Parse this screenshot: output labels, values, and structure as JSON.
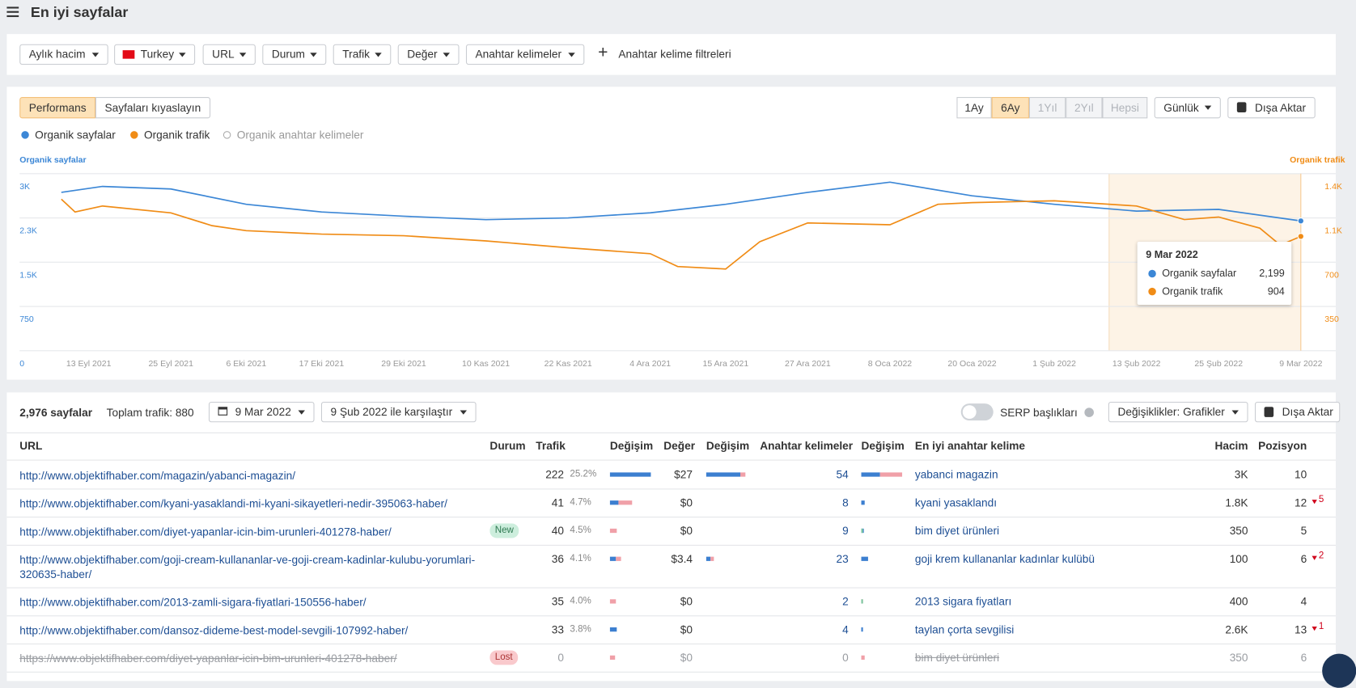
{
  "header": {
    "title": "En iyi sayfalar"
  },
  "filters": [
    "Aylık hacim",
    "Turkey",
    "URL",
    "Durum",
    "Trafik",
    "Değer",
    "Anahtar kelimeler"
  ],
  "add_filter": "Anahtar kelime filtreleri",
  "chart_tabs": [
    "Performans",
    "Sayfaları kıyaslayın"
  ],
  "ranges": [
    "1Ay",
    "6Ay",
    "1Yıl",
    "2Yıl",
    "Hepsi"
  ],
  "interval": "Günlük",
  "chart_export": "Dışa Aktar",
  "extra_legend": "Organik anahtar kelimeler",
  "chart_data": {
    "type": "line",
    "y_title": "Organik sayfalar",
    "y2_title": "Organik trafik",
    "xlim": [
      "2021-09-09",
      "2022-03-09"
    ],
    "xticks": [
      {
        "value": "2021-09-13",
        "label": "13 Eyl 2021"
      },
      {
        "value": "2021-09-25",
        "label": "25 Eyl 2021"
      },
      {
        "value": "2021-10-06",
        "label": "6 Eki 2021"
      },
      {
        "value": "2021-10-17",
        "label": "17 Eki 2021"
      },
      {
        "value": "2021-10-29",
        "label": "29 Eki 2021"
      },
      {
        "value": "2021-11-10",
        "label": "10 Kas 2021"
      },
      {
        "value": "2021-11-22",
        "label": "22 Kas 2021"
      },
      {
        "value": "2021-12-04",
        "label": "4 Ara 2021"
      },
      {
        "value": "2021-12-15",
        "label": "15 Ara 2021"
      },
      {
        "value": "2021-12-27",
        "label": "27 Ara 2021"
      },
      {
        "value": "2022-01-08",
        "label": "8 Oca 2022"
      },
      {
        "value": "2022-01-20",
        "label": "20 Oca 2022"
      },
      {
        "value": "2022-02-01",
        "label": "1 Şub 2022"
      },
      {
        "value": "2022-02-13",
        "label": "13 Şub 2022"
      },
      {
        "value": "2022-02-25",
        "label": "25 Şub 2022"
      },
      {
        "value": "2022-03-09",
        "label": "9 Mar 2022"
      }
    ],
    "ylim": [
      0,
      3000
    ],
    "yticks": [
      0,
      750,
      {
        "value": 1500,
        "label": "1.5K"
      },
      {
        "value": 2250,
        "label": "2.3K"
      },
      {
        "value": 3000,
        "label": "3K"
      }
    ],
    "y2lim": [
      0,
      1400
    ],
    "y2ticks": [
      350,
      700,
      {
        "value": 1050,
        "label": "1.1K"
      },
      {
        "value": 1400,
        "label": "1.4K"
      }
    ],
    "grid": true,
    "highlight": [
      "2022-02-09",
      "2022-03-09"
    ],
    "series": [
      {
        "name": "Organik sayfalar",
        "color": "#3c87d6",
        "x": [
          "2021-09-09",
          "2021-09-15",
          "2021-09-25",
          "2021-10-06",
          "2021-10-17",
          "2021-10-29",
          "2021-11-10",
          "2021-11-22",
          "2021-12-04",
          "2021-12-15",
          "2021-12-27",
          "2022-01-08",
          "2022-01-20",
          "2022-02-01",
          "2022-02-13",
          "2022-02-25",
          "2022-03-09"
        ],
        "values": [
          2683,
          2784,
          2740,
          2481,
          2351,
          2279,
          2221,
          2250,
          2337,
          2481,
          2683,
          2856,
          2625,
          2481,
          2365,
          2394,
          2199
        ]
      },
      {
        "name": "Organik trafik",
        "color": "#f08c16",
        "axis": "y2",
        "x": [
          "2021-09-09",
          "2021-09-11",
          "2021-09-15",
          "2021-09-25",
          "2021-10-01",
          "2021-10-06",
          "2021-10-17",
          "2021-10-29",
          "2021-11-10",
          "2021-11-22",
          "2021-12-04",
          "2021-12-08",
          "2021-12-15",
          "2021-12-20",
          "2021-12-27",
          "2022-01-08",
          "2022-01-15",
          "2022-01-20",
          "2022-02-01",
          "2022-02-13",
          "2022-02-20",
          "2022-02-25",
          "2022-03-03",
          "2022-03-06",
          "2022-03-09"
        ],
        "values": [
          1198,
          1097,
          1144,
          1090,
          989,
          949,
          922,
          909,
          868,
          814,
          767,
          666,
          646,
          862,
          1010,
          996,
          1158,
          1171,
          1185,
          1144,
          1037,
          1057,
          969,
          835,
          904
        ]
      }
    ],
    "tooltip": {
      "title": "9 Mar 2022",
      "values": [
        2199,
        904
      ],
      "value_labels": [
        "2,199",
        "904"
      ]
    }
  },
  "table": {
    "count": "2,976 sayfalar",
    "total": "Toplam trafik: 880",
    "date": "9 Mar 2022",
    "compare": "9 Şub 2022 ile karşılaştır",
    "serp": "SERP başlıkları",
    "changes": "Değişiklikler: Grafikler",
    "export": "Dışa Aktar",
    "columns": [
      "URL",
      "Durum",
      "Trafik",
      "Değişim",
      "Değer",
      "Değişim",
      "Anahtar kelimeler",
      "Değişim",
      "En iyi anahtar kelime",
      "Hacim",
      "Pozisyon"
    ],
    "rows": [
      [
        "http://www.objektifhaber.com/magazin/yabanci-magazin/",
        null,
        222,
        "25.2%",
        "$27",
        54,
        "yabanci magazin",
        "3K",
        10,
        null
      ],
      [
        "http://www.objektifhaber.com/kyani-yasaklandi-mi-kyani-sikayetleri-nedir-395063-haber/",
        null,
        41,
        "4.7%",
        "$0",
        8,
        "kyani yasaklandı",
        "1.8K",
        12,
        5
      ],
      [
        "http://www.objektifhaber.com/diyet-yapanlar-icin-bim-urunleri-401278-haber/",
        "New",
        40,
        "4.5%",
        "$0",
        9,
        "bim diyet ürünleri",
        350,
        5,
        null
      ],
      [
        "http://www.objektifhaber.com/goji-cream-kullananlar-ve-goji-cream-kadinlar-kulubu-yorumlari-320635-haber/",
        null,
        36,
        "4.1%",
        "$3.4",
        23,
        "goji krem kullananlar kadınlar kulübü",
        100,
        6,
        2
      ],
      [
        "http://www.objektifhaber.com/2013-zamli-sigara-fiyatlari-150556-haber/",
        null,
        35,
        "4.0%",
        "$0",
        2,
        "2013 sigara fiyatları",
        400,
        4,
        null
      ],
      [
        "http://www.objektifhaber.com/dansoz-dideme-best-model-sevgili-107992-haber/",
        null,
        33,
        "3.8%",
        "$0",
        4,
        "taylan çorta sevgilisi",
        "2.6K",
        13,
        1
      ],
      [
        "https://www.objektifhaber.com/diyet-yapanlar-icin-bim-urunleri-401278-haber/",
        "Lost",
        0,
        null,
        "$0",
        0,
        "bim diyet ürünleri",
        350,
        6,
        null
      ]
    ]
  }
}
